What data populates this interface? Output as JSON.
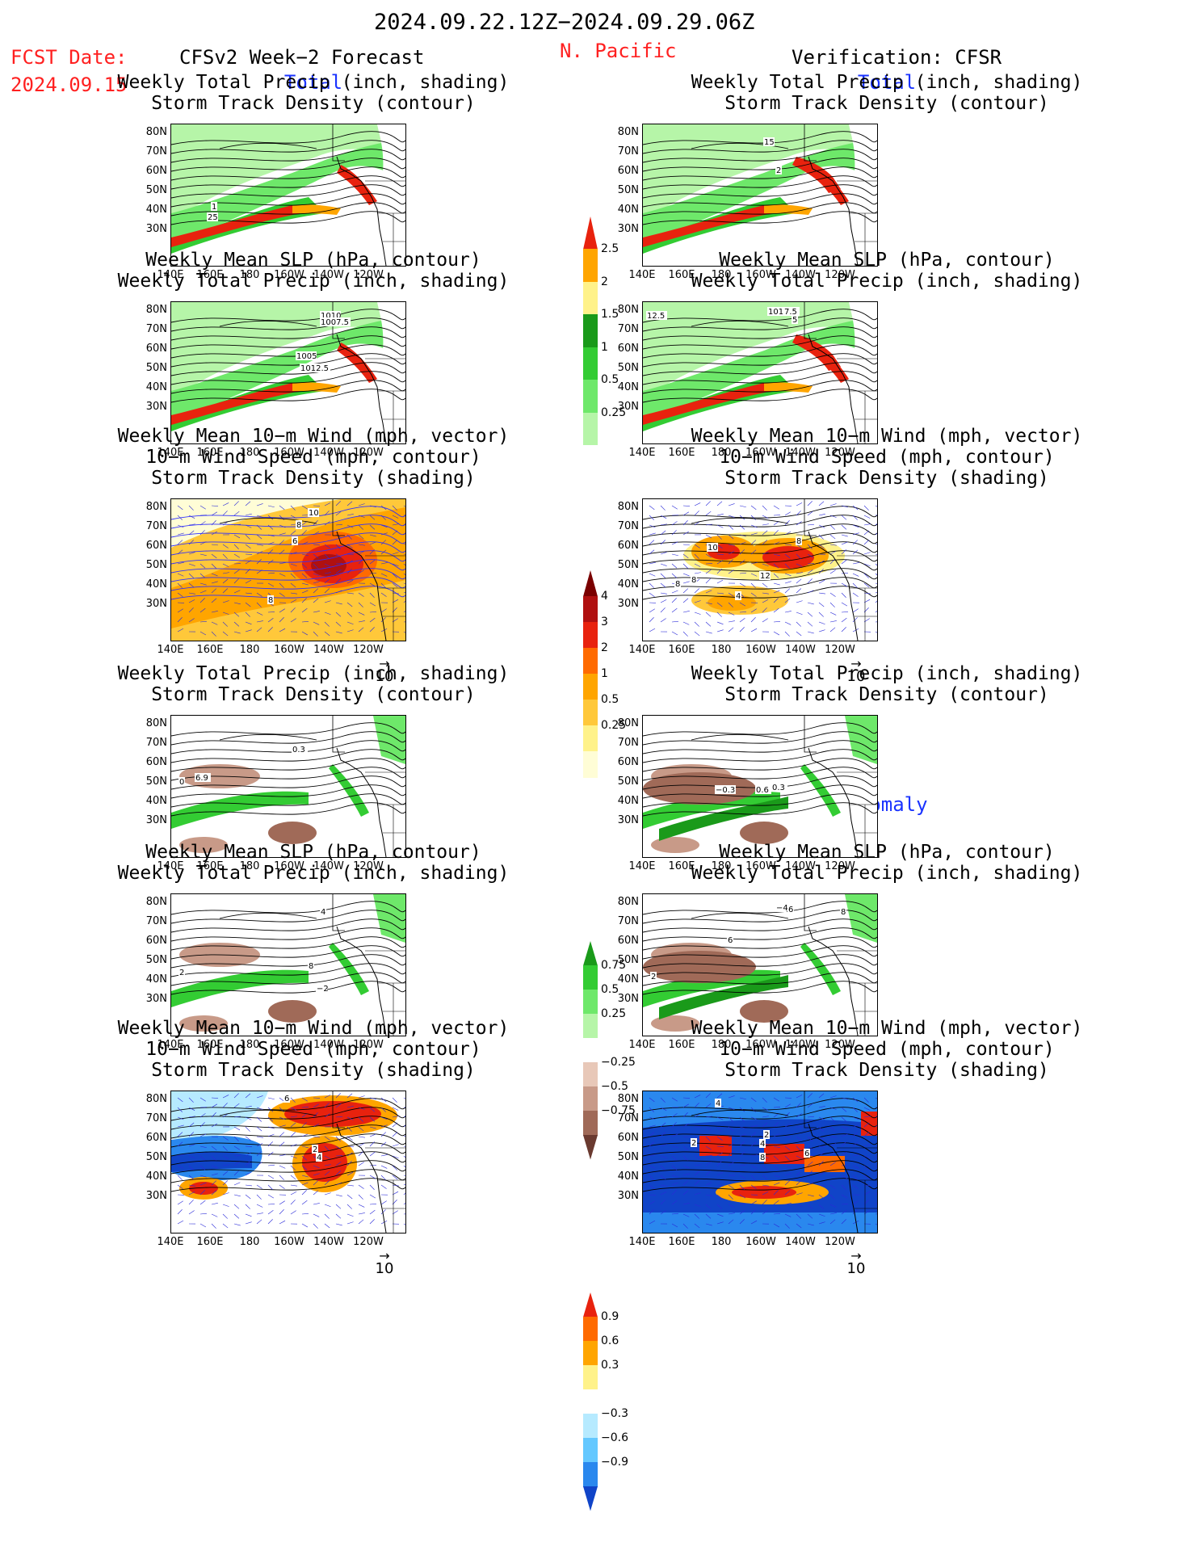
{
  "header": {
    "date_range": "2024.09.22.12Z−2024.09.29.06Z",
    "fcst_label": "FCST Date:",
    "fcst_date": "2024.09.15",
    "left_title": "CFSv2 Week−2 Forecast",
    "region": "N. Pacific",
    "right_title": "Verification: CFSR"
  },
  "sections": {
    "total": "Total",
    "anomaly": "Anomaly"
  },
  "panel_titles": {
    "precip_storm": [
      "Weekly Total Precip (inch, shading)",
      "Storm Track Density (contour)"
    ],
    "slp_precip": [
      "Weekly Mean SLP (hPa, contour)",
      "Weekly Total Precip (inch, shading)"
    ],
    "wind": [
      "Weekly Mean 10−m Wind (mph, vector)",
      "10−m Wind Speed (mph, contour)",
      "Storm Track Density (shading)"
    ]
  },
  "axes": {
    "lat_labels": [
      "80N",
      "70N",
      "60N",
      "50N",
      "40N",
      "30N"
    ],
    "lon_labels": [
      "140E",
      "160E",
      "180",
      "160W",
      "140W",
      "120W"
    ]
  },
  "vector_ref": "10",
  "colorbars": {
    "precip_total": {
      "colors": [
        "#b6f5a8",
        "#6ee86a",
        "#33cc33",
        "#1a9a1a",
        "#fff28a",
        "#ffa500",
        "#e8220e"
      ],
      "ticks": [
        "0.25",
        "0.5",
        "1",
        "1.5",
        "2",
        "2.5"
      ]
    },
    "storm_total": {
      "colors": [
        "#fffdd6",
        "#fff28a",
        "#ffc83a",
        "#ffa500",
        "#ff6a00",
        "#e8220e",
        "#b01010",
        "#7a0000"
      ],
      "ticks": [
        "0.25",
        "0.5",
        "1",
        "2",
        "3",
        "4"
      ]
    },
    "precip_anom": {
      "colors": [
        "#1a9a1a",
        "#33cc33",
        "#6ee86a",
        "#b6f5a8",
        "#ffffff",
        "#e8c8b8",
        "#c89a88",
        "#a06a58",
        "#6a3a30"
      ],
      "ticks": [
        "0.75",
        "0.5",
        "0.25",
        "−0.25",
        "−0.5",
        "−0.75"
      ]
    },
    "storm_anom": {
      "colors": [
        "#e8220e",
        "#ff6a00",
        "#ffa500",
        "#fff28a",
        "#ffffff",
        "#b6eaff",
        "#64c8ff",
        "#2a88ee",
        "#1044c8"
      ],
      "ticks": [
        "0.9",
        "0.6",
        "0.3",
        "−0.3",
        "−0.6",
        "−0.9"
      ]
    }
  },
  "map_labels": {
    "t1l": [
      "1",
      "25"
    ],
    "t1r": [
      "15",
      "2"
    ],
    "t2l": [
      "1010",
      "1007.5",
      "1005",
      "1012.5"
    ],
    "t2r": [
      "12.5",
      "1010",
      "7.5",
      "5"
    ],
    "t3l": [
      "10",
      "8",
      "6",
      "8"
    ],
    "t3r": [
      "10",
      "8",
      "12",
      "8",
      "8",
      "4"
    ],
    "a1l": [
      "0.3",
      "0",
      "6.9"
    ],
    "a1r": [
      "−0.3",
      "0.6",
      "0.3"
    ],
    "a2l": [
      "4",
      "2",
      "8",
      "−2"
    ],
    "a2r": [
      "−4",
      "6",
      "8",
      "6",
      "2"
    ],
    "a3l": [
      "6",
      "2",
      "4"
    ],
    "a3r": [
      "4",
      "2",
      "2",
      "4",
      "8",
      "6"
    ]
  }
}
